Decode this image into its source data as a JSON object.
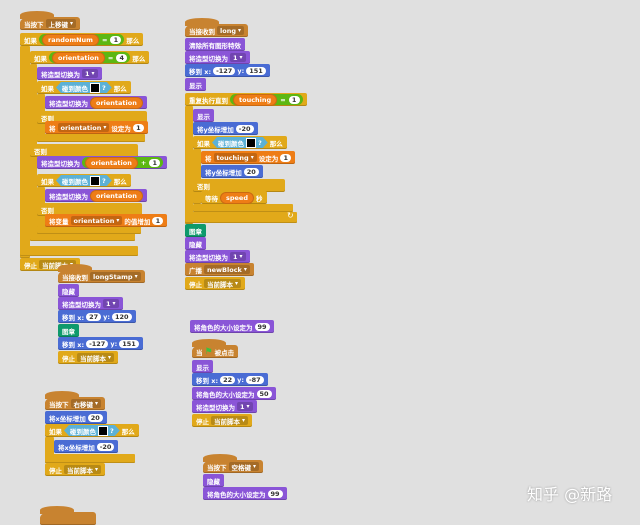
{
  "colors": {
    "events": "#c88330",
    "control": "#e1a91a",
    "looks": "#8a55d7",
    "motion": "#4a6cd4",
    "data": "#ee7d16",
    "sensing": "#5cb1d6",
    "pen": "#0e9a6c",
    "operators": "#5cb712",
    "background": "#e0e0e0"
  },
  "watermark": "知乎 @新路",
  "scripts": [
    {
      "blocks": [
        {
          "cat": "events",
          "hat": true,
          "parts": [
            {
              "k": "t",
              "v": "当按下"
            },
            {
              "k": "dd",
              "v": "上移键"
            }
          ]
        },
        {
          "cat": "control",
          "parts": [
            {
              "k": "t",
              "v": "如果"
            },
            {
              "k": "op",
              "parts": [
                {
                  "k": "rep",
                  "v": "randomNum"
                },
                {
                  "k": "t",
                  "v": "="
                },
                {
                  "k": "n",
                  "v": "1"
                }
              ]
            },
            {
              "k": "t",
              "v": "那么"
            }
          ]
        },
        {
          "cat": "control",
          "parts": [
            {
              "k": "t",
              "v": "如果"
            },
            {
              "k": "op",
              "parts": [
                {
                  "k": "rep",
                  "v": "orientation"
                },
                {
                  "k": "t",
                  "v": "="
                },
                {
                  "k": "n",
                  "v": "4"
                }
              ]
            },
            {
              "k": "t",
              "v": "那么"
            }
          ]
        },
        {
          "cat": "looks",
          "parts": [
            {
              "k": "t",
              "v": "将造型切换为"
            },
            {
              "k": "dd",
              "v": "1"
            }
          ]
        },
        {
          "cat": "control",
          "parts": [
            {
              "k": "t",
              "v": "如果"
            },
            {
              "k": "sense",
              "parts": [
                {
                  "k": "t",
                  "v": "碰到颜色"
                },
                {
                  "k": "sw"
                },
                {
                  "k": "t",
                  "v": "?"
                }
              ]
            },
            {
              "k": "t",
              "v": "那么"
            }
          ]
        },
        {
          "cat": "looks",
          "parts": [
            {
              "k": "t",
              "v": "将造型切换为"
            },
            {
              "k": "rep",
              "v": "orientation"
            }
          ]
        },
        {
          "cat": "control",
          "parts": [
            {
              "k": "t",
              "v": "否则"
            }
          ]
        },
        {
          "cat": "data",
          "parts": [
            {
              "k": "t",
              "v": "将"
            },
            {
              "k": "dd",
              "v": "orientation"
            },
            {
              "k": "t",
              "v": "设定为"
            },
            {
              "k": "n",
              "v": "1"
            }
          ]
        },
        {
          "cat": "control",
          "parts": [
            {
              "k": "t",
              "v": "否则"
            }
          ]
        },
        {
          "cat": "looks",
          "parts": [
            {
              "k": "t",
              "v": "将造型切换为"
            },
            {
              "k": "op",
              "parts": [
                {
                  "k": "rep",
                  "v": "orientation"
                },
                {
                  "k": "t",
                  "v": "+"
                },
                {
                  "k": "n",
                  "v": "1"
                }
              ]
            }
          ]
        },
        {
          "cat": "control",
          "parts": [
            {
              "k": "t",
              "v": "如果"
            },
            {
              "k": "sense",
              "parts": [
                {
                  "k": "t",
                  "v": "碰到颜色"
                },
                {
                  "k": "sw"
                },
                {
                  "k": "t",
                  "v": "?"
                }
              ]
            },
            {
              "k": "t",
              "v": "那么"
            }
          ]
        },
        {
          "cat": "looks",
          "parts": [
            {
              "k": "t",
              "v": "将造型切换为"
            },
            {
              "k": "rep",
              "v": "orientation"
            }
          ]
        },
        {
          "cat": "control",
          "parts": [
            {
              "k": "t",
              "v": "否则"
            }
          ]
        },
        {
          "cat": "data",
          "parts": [
            {
              "k": "t",
              "v": "将变量"
            },
            {
              "k": "dd",
              "v": "orientation"
            },
            {
              "k": "t",
              "v": "的值增加"
            },
            {
              "k": "n",
              "v": "1"
            }
          ]
        },
        {
          "cat": "control",
          "parts": [
            {
              "k": "t",
              "v": "停止"
            },
            {
              "k": "dd",
              "v": "当前脚本"
            }
          ]
        }
      ]
    },
    {
      "blocks": [
        {
          "cat": "events",
          "hat": true,
          "parts": [
            {
              "k": "t",
              "v": "当接收到"
            },
            {
              "k": "dd",
              "v": "long"
            }
          ]
        },
        {
          "cat": "looks",
          "parts": [
            {
              "k": "t",
              "v": "清除所有图形特效"
            }
          ]
        },
        {
          "cat": "looks",
          "parts": [
            {
              "k": "t",
              "v": "将造型切换为"
            },
            {
              "k": "dd",
              "v": "1"
            }
          ]
        },
        {
          "cat": "motion",
          "parts": [
            {
              "k": "t",
              "v": "移到 x:"
            },
            {
              "k": "n",
              "v": "-127"
            },
            {
              "k": "t",
              "v": "y:"
            },
            {
              "k": "n",
              "v": "151"
            }
          ]
        },
        {
          "cat": "looks",
          "parts": [
            {
              "k": "t",
              "v": "显示"
            }
          ]
        },
        {
          "cat": "control",
          "parts": [
            {
              "k": "t",
              "v": "重复执行直到"
            },
            {
              "k": "op",
              "parts": [
                {
                  "k": "rep",
                  "v": "touching"
                },
                {
                  "k": "t",
                  "v": "="
                },
                {
                  "k": "n",
                  "v": "1"
                }
              ]
            }
          ]
        },
        {
          "cat": "looks",
          "parts": [
            {
              "k": "t",
              "v": "显示"
            }
          ]
        },
        {
          "cat": "motion",
          "parts": [
            {
              "k": "t",
              "v": "将y坐标增加"
            },
            {
              "k": "n",
              "v": "-20"
            }
          ]
        },
        {
          "cat": "control",
          "parts": [
            {
              "k": "t",
              "v": "如果"
            },
            {
              "k": "sense",
              "parts": [
                {
                  "k": "t",
                  "v": "碰到颜色"
                },
                {
                  "k": "sw"
                },
                {
                  "k": "t",
                  "v": "?"
                }
              ]
            },
            {
              "k": "t",
              "v": "那么"
            }
          ]
        },
        {
          "cat": "data",
          "parts": [
            {
              "k": "t",
              "v": "将"
            },
            {
              "k": "dd",
              "v": "touching"
            },
            {
              "k": "t",
              "v": "设定为"
            },
            {
              "k": "n",
              "v": "1"
            }
          ]
        },
        {
          "cat": "motion",
          "parts": [
            {
              "k": "t",
              "v": "将y坐标增加"
            },
            {
              "k": "n",
              "v": "20"
            }
          ]
        },
        {
          "cat": "control",
          "parts": [
            {
              "k": "t",
              "v": "否则"
            }
          ]
        },
        {
          "cat": "control",
          "parts": [
            {
              "k": "t",
              "v": "等待"
            },
            {
              "k": "rep",
              "v": "speed"
            },
            {
              "k": "t",
              "v": "秒"
            }
          ]
        },
        {
          "cat": "pen",
          "parts": [
            {
              "k": "t",
              "v": "图章"
            }
          ]
        },
        {
          "cat": "looks",
          "parts": [
            {
              "k": "t",
              "v": "隐藏"
            }
          ]
        },
        {
          "cat": "looks",
          "parts": [
            {
              "k": "t",
              "v": "将造型切换为"
            },
            {
              "k": "dd",
              "v": "1"
            }
          ]
        },
        {
          "cat": "events",
          "parts": [
            {
              "k": "t",
              "v": "广播"
            },
            {
              "k": "dd",
              "v": "newBlock"
            }
          ]
        },
        {
          "cat": "control",
          "parts": [
            {
              "k": "t",
              "v": "停止"
            },
            {
              "k": "dd",
              "v": "当前脚本"
            }
          ]
        }
      ]
    },
    {
      "blocks": [
        {
          "cat": "events",
          "hat": true,
          "parts": [
            {
              "k": "t",
              "v": "当接收到"
            },
            {
              "k": "dd",
              "v": "longStamp"
            }
          ]
        },
        {
          "cat": "looks",
          "parts": [
            {
              "k": "t",
              "v": "隐藏"
            }
          ]
        },
        {
          "cat": "looks",
          "parts": [
            {
              "k": "t",
              "v": "将造型切换为"
            },
            {
              "k": "dd",
              "v": "1"
            }
          ]
        },
        {
          "cat": "motion",
          "parts": [
            {
              "k": "t",
              "v": "移到 x:"
            },
            {
              "k": "n",
              "v": "27"
            },
            {
              "k": "t",
              "v": "y:"
            },
            {
              "k": "n",
              "v": "120"
            }
          ]
        },
        {
          "cat": "pen",
          "parts": [
            {
              "k": "t",
              "v": "图章"
            }
          ]
        },
        {
          "cat": "motion",
          "parts": [
            {
              "k": "t",
              "v": "移到 x:"
            },
            {
              "k": "n",
              "v": "-127"
            },
            {
              "k": "t",
              "v": "y:"
            },
            {
              "k": "n",
              "v": "151"
            }
          ]
        },
        {
          "cat": "control",
          "parts": [
            {
              "k": "t",
              "v": "停止"
            },
            {
              "k": "dd",
              "v": "当前脚本"
            }
          ]
        }
      ]
    },
    {
      "blocks": [
        {
          "cat": "looks",
          "parts": [
            {
              "k": "t",
              "v": "将角色的大小设定为"
            },
            {
              "k": "n",
              "v": "99"
            }
          ]
        },
        {
          "cat": "events",
          "hat": true,
          "parts": [
            {
              "k": "t",
              "v": "当"
            },
            {
              "k": "flag",
              "icon": "green-flag-icon"
            },
            {
              "k": "t",
              "v": "被点击"
            }
          ]
        },
        {
          "cat": "looks",
          "parts": [
            {
              "k": "t",
              "v": "显示"
            }
          ]
        },
        {
          "cat": "motion",
          "parts": [
            {
              "k": "t",
              "v": "移到 x:"
            },
            {
              "k": "n",
              "v": "22"
            },
            {
              "k": "t",
              "v": "y:"
            },
            {
              "k": "n",
              "v": "-87"
            }
          ]
        },
        {
          "cat": "looks",
          "parts": [
            {
              "k": "t",
              "v": "将角色的大小设定为"
            },
            {
              "k": "n",
              "v": "50"
            }
          ]
        },
        {
          "cat": "looks",
          "parts": [
            {
              "k": "t",
              "v": "将造型切换为"
            },
            {
              "k": "dd",
              "v": "1"
            }
          ]
        },
        {
          "cat": "control",
          "parts": [
            {
              "k": "t",
              "v": "停止"
            },
            {
              "k": "dd",
              "v": "当前脚本"
            }
          ]
        }
      ]
    },
    {
      "blocks": [
        {
          "cat": "events",
          "hat": true,
          "parts": [
            {
              "k": "t",
              "v": "当按下"
            },
            {
              "k": "dd",
              "v": "右移键"
            }
          ]
        },
        {
          "cat": "motion",
          "parts": [
            {
              "k": "t",
              "v": "将x坐标增加"
            },
            {
              "k": "n",
              "v": "20"
            }
          ]
        },
        {
          "cat": "control",
          "parts": [
            {
              "k": "t",
              "v": "如果"
            },
            {
              "k": "sense",
              "parts": [
                {
                  "k": "t",
                  "v": "碰到颜色"
                },
                {
                  "k": "sw"
                },
                {
                  "k": "t",
                  "v": "?"
                }
              ]
            },
            {
              "k": "t",
              "v": "那么"
            }
          ]
        },
        {
          "cat": "motion",
          "parts": [
            {
              "k": "t",
              "v": "将x坐标增加"
            },
            {
              "k": "n",
              "v": "-20"
            }
          ]
        },
        {
          "cat": "control",
          "parts": [
            {
              "k": "t",
              "v": "停止"
            },
            {
              "k": "dd",
              "v": "当前脚本"
            }
          ]
        }
      ]
    },
    {
      "blocks": [
        {
          "cat": "events",
          "hat": true,
          "parts": [
            {
              "k": "t",
              "v": "当按下"
            },
            {
              "k": "dd",
              "v": "空格键"
            }
          ]
        },
        {
          "cat": "looks",
          "parts": [
            {
              "k": "t",
              "v": "隐藏"
            }
          ]
        },
        {
          "cat": "looks",
          "parts": [
            {
              "k": "t",
              "v": "将角色的大小设定为"
            },
            {
              "k": "n",
              "v": "99"
            }
          ]
        }
      ]
    }
  ]
}
